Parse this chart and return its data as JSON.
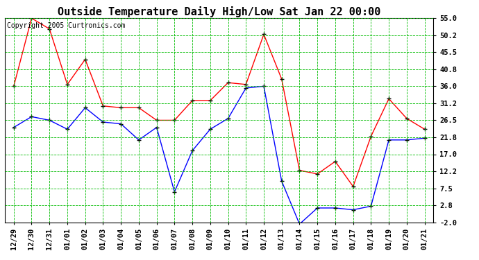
{
  "title": "Outside Temperature Daily High/Low Sat Jan 22 00:00",
  "copyright": "Copyright 2005 Curtronics.com",
  "x_labels": [
    "12/29",
    "12/30",
    "12/31",
    "01/01",
    "01/02",
    "01/03",
    "01/04",
    "01/05",
    "01/06",
    "01/07",
    "01/08",
    "01/09",
    "01/10",
    "01/11",
    "01/12",
    "01/13",
    "01/14",
    "01/15",
    "01/16",
    "01/17",
    "01/18",
    "01/19",
    "01/20",
    "01/21"
  ],
  "high_data": [
    36.0,
    55.0,
    52.0,
    36.5,
    43.5,
    30.5,
    30.0,
    30.0,
    26.5,
    26.5,
    32.0,
    32.0,
    37.0,
    36.5,
    50.5,
    38.0,
    12.5,
    11.5,
    15.0,
    8.0,
    22.0,
    32.5,
    27.0,
    24.0
  ],
  "low_data": [
    24.5,
    27.5,
    26.5,
    24.0,
    30.0,
    26.0,
    25.5,
    21.0,
    24.5,
    6.5,
    18.0,
    24.0,
    27.0,
    35.5,
    36.0,
    9.5,
    -2.5,
    2.0,
    2.0,
    1.5,
    2.5,
    21.0,
    21.0,
    21.5
  ],
  "high_color": "#ff0000",
  "low_color": "#0000ff",
  "grid_color": "#00bb00",
  "bg_color": "#ffffff",
  "yticks": [
    -2.0,
    2.8,
    7.5,
    12.2,
    17.0,
    21.8,
    26.5,
    31.2,
    36.0,
    40.8,
    45.5,
    50.2,
    55.0
  ],
  "ymin": -2.0,
  "ymax": 55.0,
  "title_fontsize": 11,
  "copyright_fontsize": 7,
  "tick_fontsize": 7.5,
  "marker": "+"
}
